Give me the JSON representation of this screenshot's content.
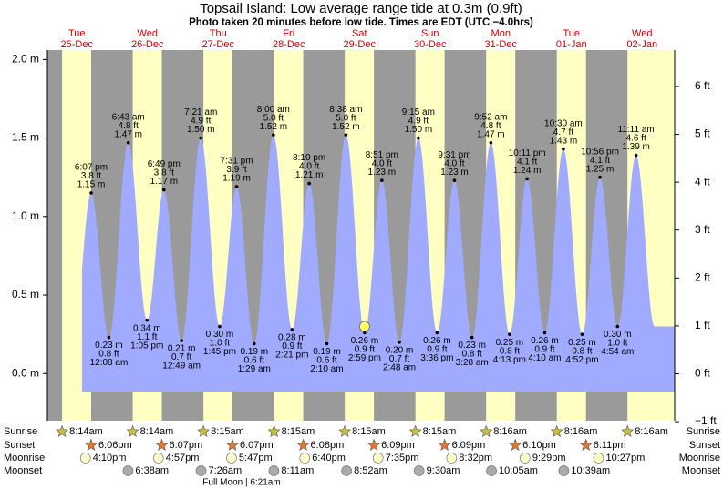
{
  "chart_data": {
    "type": "tide",
    "title": "Topsail Island: Low average range tide at 0.3m (0.9ft)",
    "subtitle": "Photo taken 20 minutes before low tide. Times are EDT (UTC −4.0hrs)",
    "ylim": [
      -0.3,
      2.06
    ],
    "yticks": [
      {
        "value": 0,
        "label": "0.0 m"
      },
      {
        "value": 0.5,
        "label": "0.5 m"
      },
      {
        "value": 1,
        "label": "1.0 m"
      },
      {
        "value": 1.5,
        "label": "1.5 m"
      },
      {
        "value": 2,
        "label": "2.0 m"
      }
    ],
    "y2lim": [
      -0.98,
      6.76
    ],
    "y2ticks": [
      {
        "value": -1,
        "label": "−1 ft"
      },
      {
        "value": 0,
        "label": "0 ft"
      },
      {
        "value": 1,
        "label": "1 ft"
      },
      {
        "value": 2,
        "label": "2 ft"
      },
      {
        "value": 3,
        "label": "3 ft"
      },
      {
        "value": 4,
        "label": "4 ft"
      },
      {
        "value": 5,
        "label": "5 ft"
      },
      {
        "value": 6,
        "label": "6 ft"
      }
    ],
    "colors": {
      "night": "#9a9a9a",
      "day": "#ffffc4",
      "tide": "#a0aaff",
      "weekday": "#cc0000"
    },
    "rows": {
      "sunrise": "Sunrise",
      "sunset": "Sunset",
      "moonrise": "Moonrise",
      "moonset": "Moonset"
    },
    "full_moon": "Full Moon | 6:21am",
    "photo": {
      "day": 4,
      "tide": 2,
      "value": 0.3
    },
    "days": [
      {
        "weekday": "Tue",
        "date": "25-Dec",
        "sunrise": "8:14am",
        "sunset": "6:06pm",
        "moonrise": "4:10pm",
        "tides": {
          "times": [
            "6:07 pm"
          ],
          "values": [
            1.15
          ],
          "value_labels": [
            "1.15 m"
          ],
          "ft_labels": [
            "3.8 ft"
          ]
        }
      },
      {
        "weekday": "Wed",
        "date": "26-Dec",
        "sunrise": "8:14am",
        "sunset": "6:07pm",
        "moonrise": "4:57pm",
        "moonset": "6:38am",
        "tides": {
          "times": [
            "12:08 am",
            "6:43 am",
            "1:05 pm",
            "6:49 pm"
          ],
          "values": [
            0.23,
            1.47,
            0.34,
            1.17
          ],
          "value_labels": [
            "0.23 m",
            "1.47 m",
            "0.34 m",
            "1.17 m"
          ],
          "ft_labels": [
            "0.8 ft",
            "4.8 ft",
            "1.1 ft",
            "3.8 ft"
          ]
        }
      },
      {
        "weekday": "Thu",
        "date": "27-Dec",
        "sunrise": "8:15am",
        "sunset": "6:07pm",
        "moonrise": "5:47pm",
        "moonset": "7:26am",
        "tides": {
          "times": [
            "12:49 am",
            "7:21 am",
            "1:45 pm",
            "7:31 pm"
          ],
          "values": [
            0.21,
            1.5,
            0.3,
            1.19
          ],
          "value_labels": [
            "0.21 m",
            "1.50 m",
            "0.30 m",
            "1.19 m"
          ],
          "ft_labels": [
            "0.7 ft",
            "4.9 ft",
            "1.0 ft",
            "3.9 ft"
          ]
        }
      },
      {
        "weekday": "Fri",
        "date": "28-Dec",
        "sunrise": "8:15am",
        "sunset": "6:08pm",
        "moonrise": "6:40pm",
        "moonset": "8:11am",
        "tides": {
          "times": [
            "1:29 am",
            "8:00 am",
            "2:21 pm",
            "8:10 pm"
          ],
          "values": [
            0.19,
            1.52,
            0.28,
            1.21
          ],
          "value_labels": [
            "0.19 m",
            "1.52 m",
            "0.28 m",
            "1.21 m"
          ],
          "ft_labels": [
            "0.6 ft",
            "5.0 ft",
            "0.9 ft",
            "4.0 ft"
          ]
        }
      },
      {
        "weekday": "Sat",
        "date": "29-Dec",
        "sunrise": "8:15am",
        "sunset": "6:09pm",
        "moonrise": "7:35pm",
        "moonset": "8:52am",
        "tides": {
          "times": [
            "2:10 am",
            "8:38 am",
            "2:59 pm",
            "8:51 pm"
          ],
          "values": [
            0.19,
            1.52,
            0.26,
            1.23
          ],
          "value_labels": [
            "0.19 m",
            "1.52 m",
            "0.26 m",
            "1.23 m"
          ],
          "ft_labels": [
            "0.6 ft",
            "5.0 ft",
            "0.9 ft",
            "4.0 ft"
          ]
        }
      },
      {
        "weekday": "Sun",
        "date": "30-Dec",
        "sunrise": "8:15am",
        "sunset": "6:09pm",
        "moonrise": "8:32pm",
        "moonset": "9:30am",
        "tides": {
          "times": [
            "2:48 am",
            "9:15 am",
            "3:36 pm",
            "9:31 pm"
          ],
          "values": [
            0.2,
            1.5,
            0.26,
            1.23
          ],
          "value_labels": [
            "0.20 m",
            "1.50 m",
            "0.26 m",
            "1.23 m"
          ],
          "ft_labels": [
            "0.7 ft",
            "4.9 ft",
            "0.9 ft",
            "4.0 ft"
          ]
        }
      },
      {
        "weekday": "Mon",
        "date": "31-Dec",
        "sunrise": "8:16am",
        "sunset": "6:10pm",
        "moonrise": "9:29pm",
        "moonset": "10:05am",
        "tides": {
          "times": [
            "3:28 am",
            "9:52 am",
            "4:13 pm",
            "10:11 pm"
          ],
          "values": [
            0.23,
            1.47,
            0.25,
            1.24
          ],
          "value_labels": [
            "0.23 m",
            "1.47 m",
            "0.25 m",
            "1.24 m"
          ],
          "ft_labels": [
            "0.8 ft",
            "4.8 ft",
            "0.8 ft",
            "4.1 ft"
          ]
        }
      },
      {
        "weekday": "Tue",
        "date": "01-Jan",
        "sunrise": "8:16am",
        "sunset": "6:11pm",
        "moonrise": "10:27pm",
        "moonset": "10:39am",
        "tides": {
          "times": [
            "4:10 am",
            "10:30 am",
            "4:52 pm",
            "10:56 pm"
          ],
          "values": [
            0.26,
            1.43,
            0.25,
            1.25
          ],
          "value_labels": [
            "0.26 m",
            "1.43 m",
            "0.25 m",
            "1.25 m"
          ],
          "ft_labels": [
            "0.9 ft",
            "4.7 ft",
            "0.8 ft",
            "4.1 ft"
          ]
        }
      },
      {
        "weekday": "Wed",
        "date": "02-Jan",
        "sunrise": "8:16am",
        "tides": {
          "times": [
            "4:54 am",
            "11:11 am"
          ],
          "values": [
            0.3,
            1.39
          ],
          "value_labels": [
            "0.30 m",
            "1.39 m"
          ],
          "ft_labels": [
            "1.0 ft",
            "4.6 ft"
          ]
        }
      }
    ]
  }
}
